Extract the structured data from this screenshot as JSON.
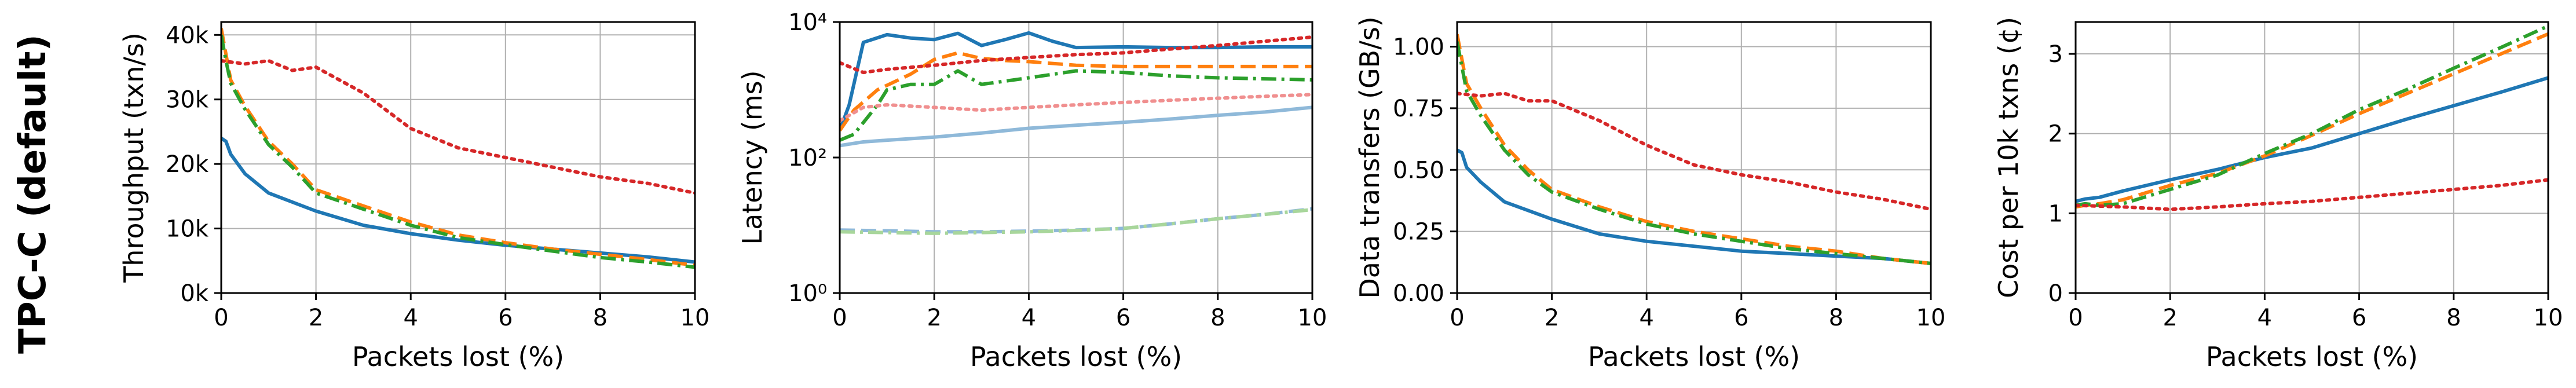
{
  "row_label": "TPC-C (default)",
  "colors": {
    "blue": "#1f77b4",
    "orange": "#ff7f0e",
    "green": "#2ca02c",
    "red": "#d62728",
    "light_blue": "#8fb9d9",
    "light_green": "#a8d69b",
    "pink": "#f08f8f",
    "grid": "#b0b0b0"
  },
  "chart_data": [
    {
      "type": "line",
      "xlabel": "Packets lost (%)",
      "ylabel": "Throughput (txn/s)",
      "xlim": [
        0,
        10
      ],
      "ylim": [
        0,
        42000
      ],
      "xticks": [
        0,
        2,
        4,
        6,
        8,
        10
      ],
      "xtick_labels": [
        "0",
        "2",
        "4",
        "6",
        "8",
        "10"
      ],
      "yticks": [
        0,
        10000,
        20000,
        30000,
        40000
      ],
      "ytick_labels": [
        "0k",
        "10k",
        "20k",
        "30k",
        "40k"
      ],
      "grid": true,
      "yscale": "linear",
      "series": [
        {
          "color": "blue",
          "style": "solid",
          "x": [
            0,
            0.1,
            0.2,
            0.5,
            1,
            2,
            3,
            4,
            5,
            6,
            7,
            8,
            9,
            10
          ],
          "y": [
            24000,
            23500,
            21500,
            18500,
            15500,
            12700,
            10500,
            9200,
            8200,
            7400,
            6800,
            6200,
            5600,
            4800
          ]
        },
        {
          "color": "orange",
          "style": "dashed",
          "x": [
            0,
            0.1,
            0.2,
            0.5,
            1,
            1.5,
            2,
            3,
            4,
            5,
            6,
            7,
            8,
            9,
            10
          ],
          "y": [
            41000,
            37000,
            33000,
            29000,
            23500,
            20000,
            16000,
            13500,
            11000,
            9000,
            7800,
            6800,
            6000,
            5200,
            4300
          ]
        },
        {
          "color": "green",
          "style": "dashdot",
          "x": [
            0,
            0.1,
            0.2,
            0.5,
            1,
            1.5,
            2,
            3,
            4,
            5,
            6,
            7,
            8,
            9,
            10
          ],
          "y": [
            40000,
            36000,
            32500,
            28500,
            23000,
            19500,
            15500,
            13000,
            10500,
            8600,
            7500,
            6500,
            5500,
            4800,
            4000
          ]
        },
        {
          "color": "red",
          "style": "dotted",
          "x": [
            0,
            0.5,
            1,
            1.5,
            2,
            3,
            4,
            5,
            6,
            7,
            8,
            9,
            10
          ],
          "y": [
            36000,
            35500,
            36000,
            34500,
            35000,
            31000,
            25500,
            22500,
            21000,
            19500,
            18000,
            17000,
            15500
          ]
        }
      ]
    },
    {
      "type": "line",
      "xlabel": "Packets lost (%)",
      "ylabel": "Latency (ms)",
      "xlim": [
        0,
        10
      ],
      "ylim": [
        1,
        10000
      ],
      "xticks": [
        0,
        2,
        4,
        6,
        8,
        10
      ],
      "xtick_labels": [
        "0",
        "2",
        "4",
        "6",
        "8",
        "10"
      ],
      "yticks": [
        1,
        100,
        10000
      ],
      "ytick_labels": [
        "10⁰",
        "10²",
        "10⁴"
      ],
      "grid": true,
      "yscale": "log",
      "series": [
        {
          "color": "blue",
          "style": "solid",
          "x": [
            0,
            0.2,
            0.5,
            1,
            1.5,
            2,
            2.5,
            3,
            3.5,
            4,
            4.5,
            5,
            6,
            7,
            8,
            9,
            10
          ],
          "y": [
            250,
            600,
            5000,
            6500,
            5800,
            5500,
            6800,
            4500,
            5500,
            6900,
            5200,
            4200,
            4300,
            4200,
            4200,
            4300,
            4300
          ]
        },
        {
          "color": "orange",
          "style": "dashed",
          "x": [
            0,
            0.3,
            0.8,
            1.5,
            2,
            2.5,
            3,
            3.5,
            4,
            5,
            6,
            7,
            8,
            9,
            10
          ],
          "y": [
            250,
            500,
            1000,
            1700,
            2800,
            3500,
            2900,
            2700,
            2600,
            2300,
            2200,
            2200,
            2200,
            2200,
            2200
          ]
        },
        {
          "color": "green",
          "style": "dashdot",
          "x": [
            0,
            0.3,
            0.8,
            1,
            1.5,
            2,
            2.5,
            3,
            4,
            5,
            6,
            7,
            8,
            9,
            10
          ],
          "y": [
            180,
            220,
            600,
            1000,
            1200,
            1200,
            1900,
            1200,
            1500,
            1900,
            1800,
            1600,
            1500,
            1450,
            1400
          ]
        },
        {
          "color": "red",
          "style": "dotted",
          "x": [
            0,
            0.5,
            1,
            2,
            3,
            4,
            5,
            6,
            7,
            8,
            9,
            10
          ],
          "y": [
            2500,
            1800,
            2000,
            2300,
            2700,
            3000,
            3300,
            3500,
            4000,
            4500,
            5200,
            6000
          ]
        },
        {
          "color": "pink",
          "style": "dotted",
          "x": [
            0,
            0.5,
            1,
            2,
            3,
            4,
            5,
            6,
            7,
            8,
            9,
            10
          ],
          "y": [
            350,
            550,
            600,
            550,
            500,
            550,
            600,
            650,
            700,
            750,
            800,
            850
          ]
        },
        {
          "color": "light_blue",
          "style": "solid",
          "x": [
            0,
            0.5,
            1,
            2,
            3,
            4,
            5,
            6,
            7,
            8,
            9,
            10
          ],
          "y": [
            150,
            170,
            180,
            200,
            230,
            270,
            300,
            330,
            370,
            420,
            470,
            550
          ]
        },
        {
          "color": "light_blue",
          "style": "dashed",
          "x": [
            0,
            1,
            2,
            3,
            4,
            5,
            6,
            7,
            8,
            9,
            10
          ],
          "y": [
            8.5,
            8.3,
            8.0,
            8.0,
            8.2,
            8.5,
            9.0,
            10.5,
            12.5,
            14.5,
            17.5
          ]
        },
        {
          "color": "light_green",
          "style": "dashdot",
          "x": [
            0,
            1,
            2,
            3,
            4,
            5,
            6,
            7,
            8,
            9,
            10
          ],
          "y": [
            8.0,
            7.8,
            7.6,
            7.8,
            8.0,
            8.4,
            9.0,
            10.5,
            12.5,
            14.5,
            17.0
          ]
        }
      ]
    },
    {
      "type": "line",
      "xlabel": "Packets lost (%)",
      "ylabel": "Data transfers (GB/s)",
      "xlim": [
        0,
        10
      ],
      "ylim": [
        0,
        1.1
      ],
      "xticks": [
        0,
        2,
        4,
        6,
        8,
        10
      ],
      "xtick_labels": [
        "0",
        "2",
        "4",
        "6",
        "8",
        "10"
      ],
      "yticks": [
        0,
        0.25,
        0.5,
        0.75,
        1.0
      ],
      "ytick_labels": [
        "0.00",
        "0.25",
        "0.50",
        "0.75",
        "1.00"
      ],
      "grid": true,
      "yscale": "linear",
      "series": [
        {
          "color": "blue",
          "style": "solid",
          "x": [
            0,
            0.1,
            0.2,
            0.5,
            1,
            2,
            3,
            4,
            5,
            6,
            7,
            8,
            9,
            10
          ],
          "y": [
            0.58,
            0.57,
            0.51,
            0.45,
            0.37,
            0.3,
            0.24,
            0.21,
            0.19,
            0.17,
            0.16,
            0.15,
            0.14,
            0.12
          ]
        },
        {
          "color": "orange",
          "style": "dashed",
          "x": [
            0,
            0.1,
            0.2,
            0.5,
            1,
            1.5,
            2,
            3,
            4,
            5,
            6,
            7,
            8,
            9,
            10
          ],
          "y": [
            1.05,
            0.95,
            0.85,
            0.75,
            0.6,
            0.5,
            0.42,
            0.35,
            0.29,
            0.25,
            0.22,
            0.19,
            0.17,
            0.14,
            0.12
          ]
        },
        {
          "color": "green",
          "style": "dashdot",
          "x": [
            0,
            0.1,
            0.2,
            0.5,
            1,
            1.5,
            2,
            3,
            4,
            5,
            6,
            7,
            8,
            9,
            10
          ],
          "y": [
            1.02,
            0.92,
            0.82,
            0.72,
            0.58,
            0.48,
            0.41,
            0.34,
            0.28,
            0.24,
            0.21,
            0.18,
            0.16,
            0.14,
            0.12
          ]
        },
        {
          "color": "red",
          "style": "dotted",
          "x": [
            0,
            0.5,
            1,
            1.5,
            2,
            3,
            4,
            5,
            6,
            7,
            8,
            9,
            10
          ],
          "y": [
            0.81,
            0.8,
            0.81,
            0.78,
            0.78,
            0.7,
            0.6,
            0.52,
            0.48,
            0.45,
            0.41,
            0.38,
            0.34
          ]
        }
      ]
    },
    {
      "type": "line",
      "xlabel": "Packets lost (%)",
      "ylabel": "Cost per 10k txns (¢)",
      "xlim": [
        0,
        10
      ],
      "ylim": [
        0,
        3.4
      ],
      "xticks": [
        0,
        2,
        4,
        6,
        8,
        10
      ],
      "xtick_labels": [
        "0",
        "2",
        "4",
        "6",
        "8",
        "10"
      ],
      "yticks": [
        0,
        1,
        2,
        3
      ],
      "ytick_labels": [
        "0",
        "1",
        "2",
        "3"
      ],
      "grid": true,
      "yscale": "linear",
      "series": [
        {
          "color": "blue",
          "style": "solid",
          "x": [
            0,
            0.2,
            0.5,
            1,
            2,
            3,
            4,
            5,
            6,
            7,
            8,
            9,
            10
          ],
          "y": [
            1.15,
            1.18,
            1.2,
            1.28,
            1.42,
            1.55,
            1.7,
            1.82,
            2.0,
            2.18,
            2.35,
            2.52,
            2.7
          ]
        },
        {
          "color": "orange",
          "style": "dashed",
          "x": [
            0,
            0.2,
            0.5,
            1,
            2,
            3,
            4,
            5,
            6,
            7,
            8,
            9,
            10
          ],
          "y": [
            1.08,
            1.1,
            1.12,
            1.17,
            1.35,
            1.5,
            1.72,
            1.98,
            2.25,
            2.5,
            2.75,
            3.0,
            3.25
          ]
        },
        {
          "color": "green",
          "style": "dashdot",
          "x": [
            0,
            0.2,
            0.5,
            1,
            2,
            3,
            4,
            5,
            6,
            7,
            8,
            9,
            10
          ],
          "y": [
            1.1,
            1.12,
            1.1,
            1.12,
            1.3,
            1.48,
            1.75,
            2.0,
            2.3,
            2.55,
            2.82,
            3.08,
            3.35
          ]
        },
        {
          "color": "red",
          "style": "dotted",
          "x": [
            0,
            1,
            2,
            3,
            4,
            5,
            6,
            7,
            8,
            9,
            10
          ],
          "y": [
            1.1,
            1.08,
            1.05,
            1.08,
            1.12,
            1.15,
            1.2,
            1.25,
            1.3,
            1.35,
            1.42
          ]
        }
      ]
    }
  ]
}
